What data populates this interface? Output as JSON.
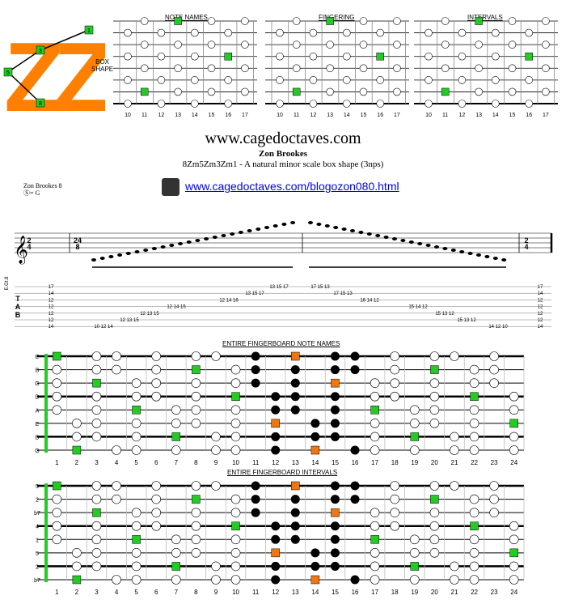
{
  "header": {
    "note_names_label": "NOTE NAMES",
    "fingering_label": "FINGERING",
    "intervals_label": "INTERVALS",
    "box_shape_label": [
      "BOX",
      "SHAPE"
    ],
    "logo_text": "ZZ",
    "shape_diagram_numbers": [
      "1",
      "3",
      "5",
      "8"
    ],
    "fret_numbers": [
      "10",
      "11",
      "12",
      "13",
      "14",
      "15",
      "16",
      "17"
    ]
  },
  "title": {
    "site": "www.cagedoctaves.com",
    "author": "Zon Brookes",
    "subtitle": "8Zm5Zm3Zm1 - A natural minor scale box shape (3nps)",
    "link": "www.cagedoctaves.com/blogozon080.html"
  },
  "score": {
    "title": "Zon Brookes 8",
    "tuning": "Ⓢ= G",
    "time_sig_start": [
      "2",
      "4"
    ],
    "time_sig_mid": [
      "24",
      "8"
    ],
    "time_sig_end": [
      "2",
      "4"
    ],
    "tab_letters": [
      "T",
      "A",
      "B"
    ],
    "staff_label": "E.Gt.8",
    "tab_rows": [
      [
        "17",
        "",
        "",
        "",
        "",
        "",
        "",
        "13 15 17",
        "17 15 13",
        "",
        "",
        "",
        "",
        "",
        "",
        "17"
      ],
      [
        "14",
        "",
        "",
        "",
        "",
        "",
        "13 15 17",
        "",
        "",
        "17 15 13",
        "",
        "",
        "",
        "",
        "",
        "14"
      ],
      [
        "12",
        "",
        "",
        "",
        "",
        "12 14 16",
        "",
        "",
        "",
        "",
        "16 14 12",
        "",
        "",
        "",
        "",
        "12"
      ],
      [
        "12",
        "",
        "",
        "",
        "12 14 15",
        "",
        "",
        "",
        "",
        "",
        "",
        "15 14 12",
        "",
        "",
        "",
        "12"
      ],
      [
        "12",
        "",
        "",
        "12 13 15",
        "",
        "",
        "",
        "",
        "",
        "",
        "",
        "",
        "15 13 12",
        "",
        "",
        "12"
      ],
      [
        "12",
        "",
        "12 13 15",
        "",
        "",
        "",
        "",
        "",
        "",
        "",
        "",
        "",
        "",
        "15 13 12",
        "",
        "12"
      ],
      [
        "14",
        "10 12 14",
        "",
        "",
        "",
        "",
        "",
        "",
        "",
        "",
        "",
        "",
        "",
        "",
        "14 12 10",
        "14"
      ]
    ]
  },
  "fingerboards": {
    "notes_title": "ENTIRE FINGERBOARD NOTE NAMES",
    "intervals_title": "ENTIRE FINGERBOARD INTERVALS",
    "fret_numbers": [
      "1",
      "2",
      "3",
      "4",
      "5",
      "6",
      "7",
      "8",
      "9",
      "10",
      "11",
      "12",
      "13",
      "14",
      "15",
      "16",
      "17",
      "18",
      "19",
      "20",
      "21",
      "22",
      "23",
      "24"
    ],
    "colors": {
      "root": "#22cc22",
      "accent": "#ee7711",
      "shape": "#000000",
      "logo": "#ff8000"
    }
  }
}
